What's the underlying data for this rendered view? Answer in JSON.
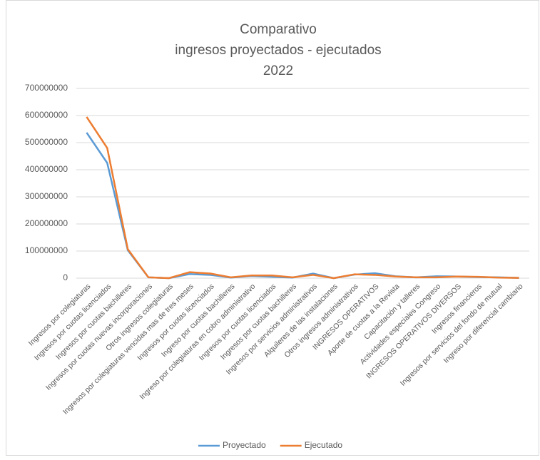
{
  "chart_data": {
    "type": "line",
    "title": [
      "Comparativo",
      "ingresos proyectados - ejecutados",
      "2022"
    ],
    "categories": [
      "Ingresos por colegiaturas",
      "Ingresos por cuotas licenciados",
      "Ingresos por cuotas bachilleres",
      "Ingresos por cuotas nuevas incorporaciones",
      "Otros ingresos colegiaturas",
      "Ingresos por colegiaturas vencidas mas de tres meses",
      "Ingresos por cuotas licenciados",
      "Ingreso por cuotas bachilleres",
      "Ingreso por colegiaturas en cobro administrativo",
      "Ingresos por cuotas licenciados",
      "Ingresos por cuotas bachilleres",
      "Ingresos por servicios administrativos",
      "Alquileres de las instalaciones",
      "Otros ingresos administrativos",
      "INGRESOS OPERATIVOS",
      "Aporte de cuotas a la Revista",
      "Capacitación y talleres",
      "Actividades especiales Congreso",
      "INGRESOS OPERATIVOS DIVERSOS",
      "Ingresos financieros",
      "Ingresos por servicios del fondo de mutual",
      "Ingreso por diferencial cambiario"
    ],
    "series": [
      {
        "name": "Proyectado",
        "color": "#5b9bd5",
        "values": [
          537000000,
          425000000,
          103000000,
          3000000,
          0,
          15000000,
          12000000,
          2000000,
          8000000,
          5000000,
          2000000,
          17000000,
          0,
          13000000,
          18000000,
          7000000,
          3000000,
          7000000,
          6000000,
          4000000,
          3000000,
          1000000
        ]
      },
      {
        "name": "Ejecutado",
        "color": "#ed7d31",
        "values": [
          595000000,
          480000000,
          107000000,
          3000000,
          0,
          22000000,
          17000000,
          3000000,
          10000000,
          10000000,
          3000000,
          12000000,
          0,
          14000000,
          12000000,
          6000000,
          3000000,
          3000000,
          6000000,
          5000000,
          2000000,
          1000000
        ]
      }
    ],
    "ylim": [
      0,
      700000000
    ],
    "yticks": [
      0,
      100000000,
      200000000,
      300000000,
      400000000,
      500000000,
      600000000,
      700000000
    ],
    "grid": true,
    "legend": "bottom"
  }
}
